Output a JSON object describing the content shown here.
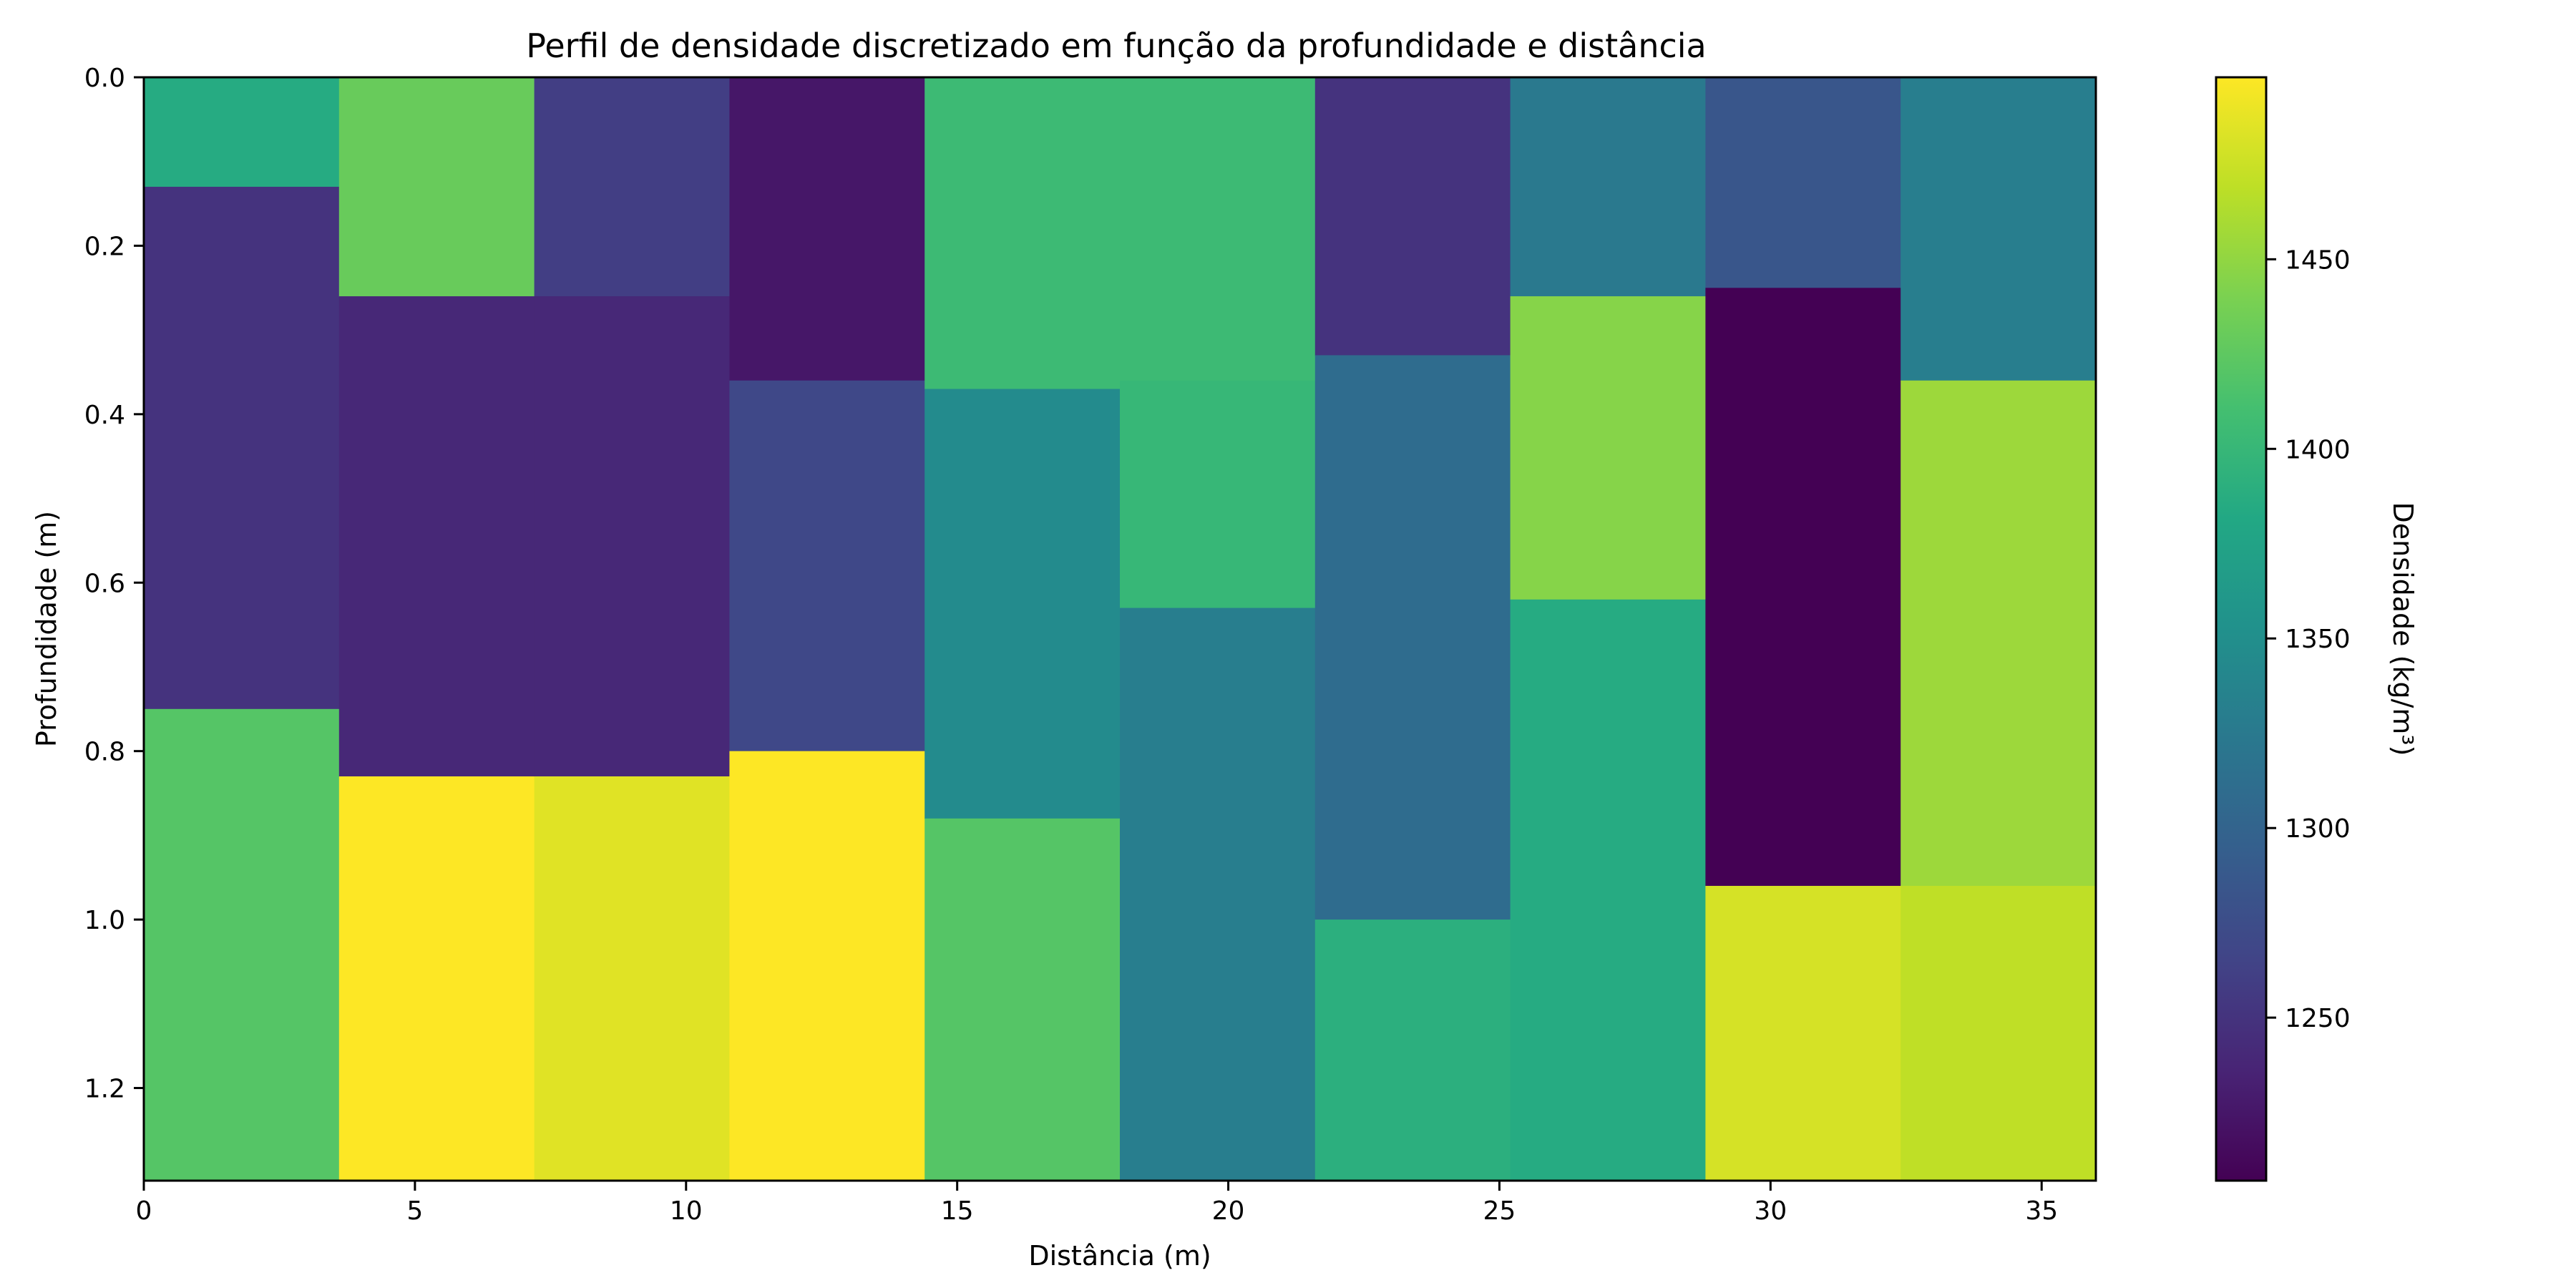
{
  "chart_data": {
    "type": "heatmap",
    "title": "Perfil de densidade discretizado em função da profundidade e distância",
    "xlabel": "Distância (m)",
    "ylabel": "Profundidade (m)",
    "xlim": [
      0,
      36
    ],
    "ylim": [
      0,
      1.31
    ],
    "y_inverted": true,
    "x_ticks": [
      0,
      5,
      10,
      15,
      20,
      25,
      30,
      35
    ],
    "x_tick_labels": [
      "0",
      "5",
      "10",
      "15",
      "20",
      "25",
      "30",
      "35"
    ],
    "y_ticks": [
      0.0,
      0.2,
      0.4,
      0.6,
      0.8,
      1.0,
      1.2
    ],
    "y_tick_labels": [
      "0.0",
      "0.2",
      "0.4",
      "0.6",
      "0.8",
      "1.0",
      "1.2"
    ],
    "colormap": "viridis",
    "colorbar": {
      "label": "Densidade (kg/m³)",
      "vmin": 1207,
      "vmax": 1498,
      "ticks": [
        1250,
        1300,
        1350,
        1400,
        1450
      ],
      "tick_labels": [
        "1250",
        "1300",
        "1350",
        "1400",
        "1450"
      ]
    },
    "columns": [
      {
        "x0": 0.0,
        "x1": 3.6,
        "layers": [
          {
            "y0": 0.0,
            "y1": 0.13,
            "value": 1385
          },
          {
            "y0": 0.13,
            "y1": 0.75,
            "value": 1250
          },
          {
            "y0": 0.75,
            "y1": 1.31,
            "value": 1420
          }
        ]
      },
      {
        "x0": 3.6,
        "x1": 7.2,
        "layers": [
          {
            "y0": 0.0,
            "y1": 0.26,
            "value": 1430
          },
          {
            "y0": 0.26,
            "y1": 0.83,
            "value": 1240
          },
          {
            "y0": 0.83,
            "y1": 1.31,
            "value": 1498
          }
        ]
      },
      {
        "x0": 7.2,
        "x1": 10.8,
        "layers": [
          {
            "y0": 0.0,
            "y1": 0.26,
            "value": 1260
          },
          {
            "y0": 0.26,
            "y1": 0.83,
            "value": 1240
          },
          {
            "y0": 0.83,
            "y1": 1.31,
            "value": 1485
          }
        ]
      },
      {
        "x0": 10.8,
        "x1": 14.4,
        "layers": [
          {
            "y0": 0.0,
            "y1": 0.36,
            "value": 1225
          },
          {
            "y0": 0.36,
            "y1": 0.8,
            "value": 1270
          },
          {
            "y0": 0.8,
            "y1": 1.31,
            "value": 1498
          }
        ]
      },
      {
        "x0": 14.4,
        "x1": 18.0,
        "layers": [
          {
            "y0": 0.0,
            "y1": 0.37,
            "value": 1405
          },
          {
            "y0": 0.37,
            "y1": 0.88,
            "value": 1345
          },
          {
            "y0": 0.88,
            "y1": 1.31,
            "value": 1420
          }
        ]
      },
      {
        "x0": 18.0,
        "x1": 21.6,
        "layers": [
          {
            "y0": 0.0,
            "y1": 0.36,
            "value": 1405
          },
          {
            "y0": 0.36,
            "y1": 0.63,
            "value": 1400
          },
          {
            "y0": 0.63,
            "y1": 1.31,
            "value": 1330
          }
        ]
      },
      {
        "x0": 21.6,
        "x1": 25.2,
        "layers": [
          {
            "y0": 0.0,
            "y1": 0.33,
            "value": 1250
          },
          {
            "y0": 0.33,
            "y1": 1.0,
            "value": 1310
          },
          {
            "y0": 1.0,
            "y1": 1.31,
            "value": 1390
          }
        ]
      },
      {
        "x0": 25.2,
        "x1": 28.8,
        "layers": [
          {
            "y0": 0.0,
            "y1": 0.26,
            "value": 1325
          },
          {
            "y0": 0.26,
            "y1": 0.62,
            "value": 1445
          },
          {
            "y0": 0.62,
            "y1": 1.31,
            "value": 1385
          }
        ]
      },
      {
        "x0": 28.8,
        "x1": 32.4,
        "layers": [
          {
            "y0": 0.0,
            "y1": 0.25,
            "value": 1285
          },
          {
            "y0": 0.25,
            "y1": 0.96,
            "value": 1207
          },
          {
            "y0": 0.96,
            "y1": 1.31,
            "value": 1480
          }
        ]
      },
      {
        "x0": 32.4,
        "x1": 36.0,
        "layers": [
          {
            "y0": 0.0,
            "y1": 0.36,
            "value": 1330
          },
          {
            "y0": 0.36,
            "y1": 0.96,
            "value": 1455
          },
          {
            "y0": 0.96,
            "y1": 1.31,
            "value": 1470
          }
        ]
      }
    ]
  }
}
